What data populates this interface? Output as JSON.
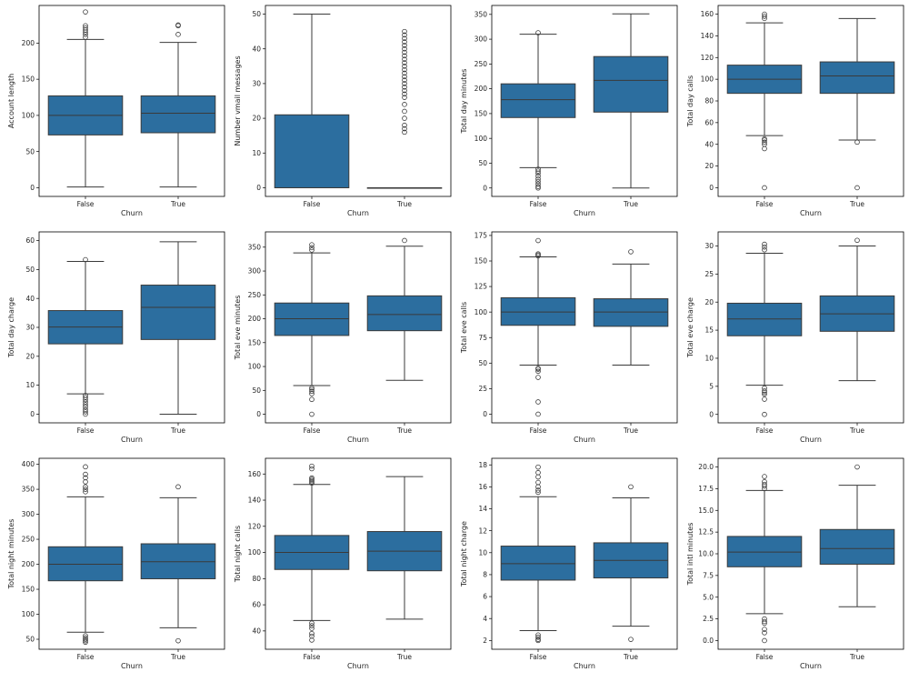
{
  "chart_data": [
    {
      "type": "box",
      "xlabel": "Churn",
      "ylabel": "Account length",
      "categories": [
        "False",
        "True"
      ],
      "ylim": [
        -12,
        252
      ],
      "yticks": [
        0,
        50,
        100,
        150,
        200
      ],
      "boxes": [
        {
          "q1": 73,
          "median": 100,
          "q3": 127,
          "whislo": 1,
          "whishi": 205,
          "fliers": [
            208,
            212,
            215,
            218,
            221,
            224,
            243
          ]
        },
        {
          "q1": 76,
          "median": 103,
          "q3": 127,
          "whislo": 1,
          "whishi": 201,
          "fliers": [
            212,
            224,
            225
          ]
        }
      ]
    },
    {
      "type": "box",
      "xlabel": "Churn",
      "ylabel": "Number vmail messages",
      "categories": [
        "False",
        "True"
      ],
      "ylim": [
        -2.5,
        52.5
      ],
      "yticks": [
        0,
        10,
        20,
        30,
        40,
        50
      ],
      "boxes": [
        {
          "q1": 0,
          "median": 0,
          "q3": 21,
          "whislo": 0,
          "whishi": 50,
          "fliers": []
        },
        {
          "q1": 0,
          "median": 0,
          "q3": 0,
          "whislo": 0,
          "whishi": 0,
          "fliers": [
            16,
            17,
            18,
            20,
            22,
            24,
            26,
            27,
            28,
            29,
            30,
            31,
            32,
            33,
            34,
            35,
            36,
            37,
            38,
            39,
            40,
            41,
            42,
            43,
            44,
            45
          ]
        }
      ]
    },
    {
      "type": "box",
      "xlabel": "Churn",
      "ylabel": "Total day minutes",
      "categories": [
        "False",
        "True"
      ],
      "ylim": [
        -17,
        368
      ],
      "yticks": [
        0,
        50,
        100,
        150,
        200,
        250,
        300,
        350
      ],
      "boxes": [
        {
          "q1": 142,
          "median": 178,
          "q3": 210,
          "whislo": 41,
          "whishi": 310,
          "fliers": [
            0,
            3,
            8,
            13,
            18,
            24,
            30,
            34,
            38,
            313
          ]
        },
        {
          "q1": 153,
          "median": 217,
          "q3": 265,
          "whislo": 0,
          "whishi": 351,
          "fliers": []
        }
      ]
    },
    {
      "type": "box",
      "xlabel": "Churn",
      "ylabel": "Total day calls",
      "categories": [
        "False",
        "True"
      ],
      "ylim": [
        -8,
        168
      ],
      "yticks": [
        0,
        20,
        40,
        60,
        80,
        100,
        120,
        140,
        160
      ],
      "boxes": [
        {
          "q1": 87,
          "median": 100,
          "q3": 113,
          "whislo": 48,
          "whishi": 152,
          "fliers": [
            0,
            36,
            40,
            42,
            44,
            45,
            156,
            158,
            160
          ]
        },
        {
          "q1": 87,
          "median": 103,
          "q3": 116,
          "whislo": 44,
          "whishi": 156,
          "fliers": [
            0,
            42
          ]
        }
      ]
    },
    {
      "type": "box",
      "xlabel": "Churn",
      "ylabel": "Total day charge",
      "categories": [
        "False",
        "True"
      ],
      "ylim": [
        -3,
        63
      ],
      "yticks": [
        0,
        10,
        20,
        30,
        40,
        50,
        60
      ],
      "boxes": [
        {
          "q1": 24.3,
          "median": 30.1,
          "q3": 35.8,
          "whislo": 7.0,
          "whishi": 52.8,
          "fliers": [
            0,
            0.8,
            1.6,
            2.5,
            3.3,
            4.2,
            5.0,
            5.8,
            6.5,
            53.4
          ]
        },
        {
          "q1": 25.8,
          "median": 36.9,
          "q3": 44.6,
          "whislo": 0,
          "whishi": 59.6,
          "fliers": []
        }
      ]
    },
    {
      "type": "box",
      "xlabel": "Churn",
      "ylabel": "Total eve minutes",
      "categories": [
        "False",
        "True"
      ],
      "ylim": [
        -18,
        382
      ],
      "yticks": [
        0,
        50,
        100,
        150,
        200,
        250,
        300,
        350
      ],
      "boxes": [
        {
          "q1": 165,
          "median": 200,
          "q3": 233,
          "whislo": 60,
          "whishi": 338,
          "fliers": [
            0,
            31,
            43,
            48,
            52,
            55,
            344,
            349,
            355
          ]
        },
        {
          "q1": 175,
          "median": 209,
          "q3": 248,
          "whislo": 71,
          "whishi": 352,
          "fliers": [
            364
          ]
        }
      ]
    },
    {
      "type": "box",
      "xlabel": "Churn",
      "ylabel": "Total eve calls",
      "categories": [
        "False",
        "True"
      ],
      "ylim": [
        -8.5,
        178.5
      ],
      "yticks": [
        0,
        25,
        50,
        75,
        100,
        125,
        150,
        175
      ],
      "boxes": [
        {
          "q1": 87,
          "median": 100,
          "q3": 114,
          "whislo": 48,
          "whishi": 154,
          "fliers": [
            0,
            12,
            36,
            42,
            44,
            45,
            155,
            156,
            157,
            170
          ]
        },
        {
          "q1": 86,
          "median": 100,
          "q3": 113,
          "whislo": 48,
          "whishi": 147,
          "fliers": [
            159
          ]
        }
      ]
    },
    {
      "type": "box",
      "xlabel": "Churn",
      "ylabel": "Total eve charge",
      "categories": [
        "False",
        "True"
      ],
      "ylim": [
        -1.5,
        32.5
      ],
      "yticks": [
        0,
        5,
        10,
        15,
        20,
        25,
        30
      ],
      "boxes": [
        {
          "q1": 14.0,
          "median": 17.0,
          "q3": 19.8,
          "whislo": 5.2,
          "whishi": 28.7,
          "fliers": [
            0,
            2.7,
            3.6,
            3.9,
            4.2,
            4.7,
            29.3,
            29.8,
            30.3
          ]
        },
        {
          "q1": 14.8,
          "median": 17.9,
          "q3": 21.1,
          "whislo": 6.0,
          "whishi": 30.0,
          "fliers": [
            31.0
          ]
        }
      ]
    },
    {
      "type": "box",
      "xlabel": "Churn",
      "ylabel": "Total night minutes",
      "categories": [
        "False",
        "True"
      ],
      "ylim": [
        30,
        412
      ],
      "yticks": [
        50,
        100,
        150,
        200,
        250,
        300,
        350,
        400
      ],
      "boxes": [
        {
          "q1": 167,
          "median": 200,
          "q3": 235,
          "whislo": 64,
          "whishi": 335,
          "fliers": [
            44,
            47,
            50,
            53,
            57,
            345,
            350,
            355,
            365,
            373,
            380,
            395
          ]
        },
        {
          "q1": 171,
          "median": 205,
          "q3": 241,
          "whislo": 73,
          "whishi": 333,
          "fliers": [
            47,
            355
          ]
        }
      ]
    },
    {
      "type": "box",
      "xlabel": "Churn",
      "ylabel": "Total night calls",
      "categories": [
        "False",
        "True"
      ],
      "ylim": [
        26,
        172
      ],
      "yticks": [
        40,
        60,
        80,
        100,
        120,
        140,
        160
      ],
      "boxes": [
        {
          "q1": 87,
          "median": 100,
          "q3": 113,
          "whislo": 48,
          "whishi": 152,
          "fliers": [
            33,
            36,
            38,
            42,
            44,
            46,
            153,
            154,
            155,
            156,
            157,
            164,
            166
          ]
        },
        {
          "q1": 86,
          "median": 101,
          "q3": 116,
          "whislo": 49,
          "whishi": 158,
          "fliers": []
        }
      ]
    },
    {
      "type": "box",
      "xlabel": "Churn",
      "ylabel": "Total night charge",
      "categories": [
        "False",
        "True"
      ],
      "ylim": [
        1.2,
        18.6
      ],
      "yticks": [
        2,
        4,
        6,
        8,
        10,
        12,
        14,
        16,
        18
      ],
      "boxes": [
        {
          "q1": 7.5,
          "median": 9.0,
          "q3": 10.6,
          "whislo": 2.9,
          "whishi": 15.1,
          "fliers": [
            2.0,
            2.1,
            2.3,
            2.5,
            15.5,
            15.7,
            16.0,
            16.4,
            16.9,
            17.3,
            17.8
          ]
        },
        {
          "q1": 7.7,
          "median": 9.3,
          "q3": 10.9,
          "whislo": 3.3,
          "whishi": 15.0,
          "fliers": [
            2.1,
            16.0
          ]
        }
      ]
    },
    {
      "type": "box",
      "xlabel": "Churn",
      "ylabel": "Total intl minutes",
      "categories": [
        "False",
        "True"
      ],
      "ylim": [
        -1,
        21
      ],
      "yticks": [
        0.0,
        2.5,
        5.0,
        7.5,
        10.0,
        12.5,
        15.0,
        17.5,
        20.0
      ],
      "boxes": [
        {
          "q1": 8.5,
          "median": 10.2,
          "q3": 12.0,
          "whislo": 3.1,
          "whishi": 17.3,
          "fliers": [
            0,
            0.9,
            1.3,
            2.0,
            2.2,
            2.5,
            17.5,
            17.8,
            18.0,
            18.3,
            18.9
          ]
        },
        {
          "q1": 8.8,
          "median": 10.6,
          "q3": 12.8,
          "whislo": 3.9,
          "whishi": 17.9,
          "fliers": [
            20.0
          ]
        }
      ]
    }
  ]
}
